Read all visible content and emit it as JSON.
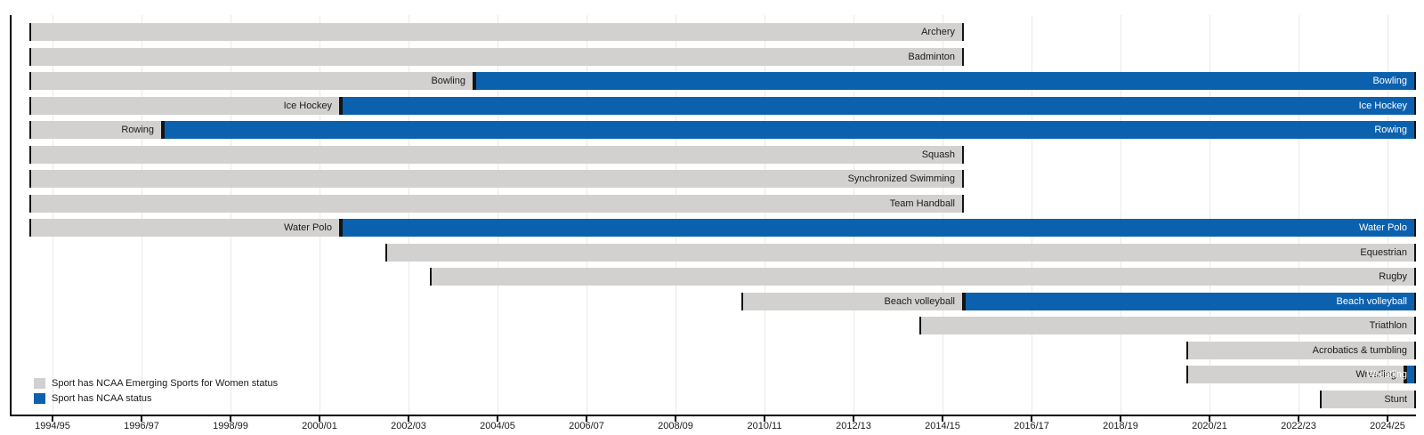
{
  "legend": {
    "items": [
      {
        "id": "emerging",
        "label": "Sport has NCAA Emerging Sports for Women status",
        "color": "#d3d1cf"
      },
      {
        "id": "ncaa",
        "label": "Sport has NCAA status",
        "color": "#0c61ae"
      }
    ]
  },
  "chart_data": {
    "type": "bar",
    "subtype": "gantt-timeline",
    "title": "",
    "xlabel": "",
    "ylabel": "",
    "unit": "academic season (year value = season start; 1994 means the 1994/95 season)",
    "axis_range": [
      1993.56,
      2025.16
    ],
    "grid": true,
    "legend_position": "bottom-left",
    "status_colors": {
      "emerging": "#d3d1cf",
      "ncaa": "#0c61ae"
    },
    "x_ticks": [
      {
        "v": 1994.52,
        "label": "1994/95"
      },
      {
        "v": 1996.52,
        "label": "1996/97"
      },
      {
        "v": 1998.52,
        "label": "1998/99"
      },
      {
        "v": 2000.52,
        "label": "2000/01"
      },
      {
        "v": 2002.52,
        "label": "2002/03"
      },
      {
        "v": 2004.52,
        "label": "2004/05"
      },
      {
        "v": 2006.52,
        "label": "2006/07"
      },
      {
        "v": 2008.52,
        "label": "2008/09"
      },
      {
        "v": 2010.52,
        "label": "2010/11"
      },
      {
        "v": 2012.52,
        "label": "2012/13"
      },
      {
        "v": 2014.52,
        "label": "2014/15"
      },
      {
        "v": 2016.52,
        "label": "2016/17"
      },
      {
        "v": 2018.52,
        "label": "2018/19"
      },
      {
        "v": 2020.52,
        "label": "2020/21"
      },
      {
        "v": 2022.52,
        "label": "2022/23"
      },
      {
        "v": 2024.52,
        "label": "2024/25"
      }
    ],
    "rows": [
      {
        "sport": "Archery",
        "segments": [
          {
            "status": "emerging",
            "start": 1994.0,
            "end": 2015.0,
            "label": "Archery",
            "label_color": "dark"
          }
        ]
      },
      {
        "sport": "Badminton",
        "segments": [
          {
            "status": "emerging",
            "start": 1994.0,
            "end": 2015.0,
            "label": "Badminton",
            "label_color": "dark"
          }
        ]
      },
      {
        "sport": "Bowling",
        "segments": [
          {
            "status": "emerging",
            "start": 1994.0,
            "end": 2004.0,
            "label": "Bowling",
            "label_color": "dark"
          },
          {
            "status": "ncaa",
            "start": 2004.0,
            "end": 2025.16,
            "label": "Bowling",
            "label_color": "white"
          }
        ]
      },
      {
        "sport": "Ice Hockey",
        "segments": [
          {
            "status": "emerging",
            "start": 1994.0,
            "end": 2001.0,
            "label": "Ice Hockey",
            "label_color": "dark"
          },
          {
            "status": "ncaa",
            "start": 2001.0,
            "end": 2025.16,
            "label": "Ice Hockey",
            "label_color": "white"
          }
        ]
      },
      {
        "sport": "Rowing",
        "segments": [
          {
            "status": "emerging",
            "start": 1994.0,
            "end": 1997.0,
            "label": "Rowing",
            "label_color": "dark"
          },
          {
            "status": "ncaa",
            "start": 1997.0,
            "end": 2025.16,
            "label": "Rowing",
            "label_color": "white"
          }
        ]
      },
      {
        "sport": "Squash",
        "segments": [
          {
            "status": "emerging",
            "start": 1994.0,
            "end": 2015.0,
            "label": "Squash",
            "label_color": "dark"
          }
        ]
      },
      {
        "sport": "Synchronized Swimming",
        "segments": [
          {
            "status": "emerging",
            "start": 1994.0,
            "end": 2015.0,
            "label": "Synchronized Swimming",
            "label_color": "dark"
          }
        ]
      },
      {
        "sport": "Team Handball",
        "segments": [
          {
            "status": "emerging",
            "start": 1994.0,
            "end": 2015.0,
            "label": "Team Handball",
            "label_color": "dark"
          }
        ]
      },
      {
        "sport": "Water Polo",
        "segments": [
          {
            "status": "emerging",
            "start": 1994.0,
            "end": 2001.0,
            "label": "Water Polo",
            "label_color": "dark"
          },
          {
            "status": "ncaa",
            "start": 2001.0,
            "end": 2025.16,
            "label": "Water Polo",
            "label_color": "white"
          }
        ]
      },
      {
        "sport": "Equestrian",
        "segments": [
          {
            "status": "emerging",
            "start": 2002.0,
            "end": 2025.16,
            "label": "Equestrian",
            "label_color": "dark"
          }
        ]
      },
      {
        "sport": "Rugby",
        "segments": [
          {
            "status": "emerging",
            "start": 2003.0,
            "end": 2025.16,
            "label": "Rugby",
            "label_color": "dark"
          }
        ]
      },
      {
        "sport": "Beach volleyball",
        "segments": [
          {
            "status": "emerging",
            "start": 2010.0,
            "end": 2015.0,
            "label": "Beach volleyball",
            "label_color": "dark"
          },
          {
            "status": "ncaa",
            "start": 2015.0,
            "end": 2025.16,
            "label": "Beach volleyball",
            "label_color": "white"
          }
        ]
      },
      {
        "sport": "Triathlon",
        "segments": [
          {
            "status": "emerging",
            "start": 2014.0,
            "end": 2025.16,
            "label": "Triathlon",
            "label_color": "dark"
          }
        ]
      },
      {
        "sport": "Acrobatics & tumbling",
        "segments": [
          {
            "status": "emerging",
            "start": 2020.0,
            "end": 2025.16,
            "label": "Acrobatics & tumbling",
            "label_color": "dark"
          }
        ]
      },
      {
        "sport": "Wrestling",
        "segments": [
          {
            "status": "emerging",
            "start": 2020.0,
            "end": 2024.92,
            "label": "Wrestling",
            "label_color": "dark"
          },
          {
            "status": "ncaa",
            "start": 2024.92,
            "end": 2025.16,
            "label": "Wrestling",
            "label_color": "white"
          }
        ]
      },
      {
        "sport": "Stunt",
        "segments": [
          {
            "status": "emerging",
            "start": 2023.0,
            "end": 2025.16,
            "label": "Stunt",
            "label_color": "dark"
          }
        ]
      }
    ]
  }
}
